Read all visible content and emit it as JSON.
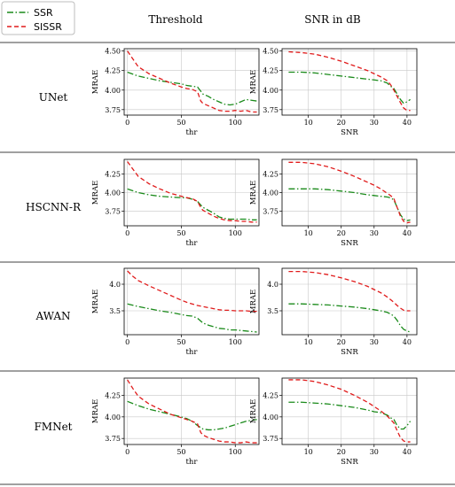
{
  "legend": {
    "items": [
      {
        "name": "SSR",
        "color": "#1a8a1a",
        "dash": "dashdot"
      },
      {
        "name": "SISSR",
        "color": "#e01b1b",
        "dash": "dash"
      }
    ]
  },
  "columns": [
    "Threshold",
    "SNR in dB"
  ],
  "rows": [
    "UNet",
    "HSCNN-R",
    "AWAN",
    "FMNet"
  ],
  "chart_data": [
    {
      "type": "line",
      "row": "UNet",
      "column": "Threshold",
      "xlabel": "thr",
      "ylabel": "MRAE",
      "xlim": [
        -3,
        122
      ],
      "ylim": [
        3.68,
        4.53
      ],
      "xticks": [
        0,
        50,
        100
      ],
      "yticks": [
        3.75,
        4.0,
        4.25,
        4.5
      ],
      "grid": true,
      "series": [
        {
          "name": "SSR",
          "x": [
            0,
            10,
            20,
            30,
            40,
            50,
            55,
            60,
            65,
            70,
            75,
            80,
            85,
            90,
            95,
            100,
            105,
            110,
            115,
            120
          ],
          "values": [
            4.23,
            4.18,
            4.15,
            4.12,
            4.1,
            4.08,
            4.06,
            4.05,
            4.04,
            3.95,
            3.92,
            3.88,
            3.85,
            3.82,
            3.81,
            3.82,
            3.85,
            3.88,
            3.87,
            3.86
          ]
        },
        {
          "name": "SISSR",
          "x": [
            0,
            5,
            10,
            20,
            30,
            40,
            50,
            55,
            60,
            65,
            68,
            70,
            75,
            80,
            85,
            90,
            95,
            100,
            105,
            110,
            115,
            120
          ],
          "values": [
            4.5,
            4.4,
            4.3,
            4.21,
            4.15,
            4.09,
            4.04,
            4.02,
            4.01,
            3.98,
            3.86,
            3.83,
            3.8,
            3.77,
            3.74,
            3.73,
            3.73,
            3.74,
            3.73,
            3.74,
            3.72,
            3.72
          ]
        }
      ]
    },
    {
      "type": "line",
      "row": "UNet",
      "column": "SNR in dB",
      "xlabel": "SNR",
      "ylabel": "MRAE",
      "xlim": [
        2,
        43
      ],
      "ylim": [
        3.68,
        4.53
      ],
      "xticks": [
        10,
        20,
        30,
        40
      ],
      "yticks": [
        3.75,
        4.0,
        4.25,
        4.5
      ],
      "grid": true,
      "series": [
        {
          "name": "SSR",
          "x": [
            4,
            8,
            12,
            16,
            20,
            24,
            28,
            30,
            32,
            34,
            35,
            36,
            37,
            38,
            39,
            40,
            41
          ],
          "values": [
            4.23,
            4.23,
            4.22,
            4.2,
            4.18,
            4.16,
            4.14,
            4.13,
            4.12,
            4.09,
            4.05,
            4.02,
            3.95,
            3.88,
            3.83,
            3.85,
            3.88
          ]
        },
        {
          "name": "SISSR",
          "x": [
            4,
            8,
            12,
            16,
            20,
            24,
            28,
            30,
            32,
            34,
            35,
            36,
            37,
            38,
            39,
            40,
            41
          ],
          "values": [
            4.49,
            4.48,
            4.46,
            4.42,
            4.37,
            4.31,
            4.25,
            4.21,
            4.17,
            4.12,
            4.07,
            4.0,
            3.92,
            3.84,
            3.77,
            3.74,
            3.74
          ]
        }
      ]
    },
    {
      "type": "line",
      "row": "HSCNN-R",
      "column": "Threshold",
      "xlabel": "thr",
      "ylabel": "MRAE",
      "xlim": [
        -3,
        122
      ],
      "ylim": [
        3.55,
        4.45
      ],
      "xticks": [
        0,
        50,
        100
      ],
      "yticks": [
        3.75,
        4.0,
        4.25
      ],
      "grid": true,
      "series": [
        {
          "name": "SSR",
          "x": [
            0,
            10,
            20,
            30,
            40,
            50,
            55,
            60,
            65,
            70,
            75,
            80,
            85,
            90,
            95,
            100,
            105,
            110,
            115,
            120
          ],
          "values": [
            4.05,
            4.0,
            3.97,
            3.95,
            3.94,
            3.93,
            3.93,
            3.91,
            3.88,
            3.8,
            3.76,
            3.72,
            3.67,
            3.65,
            3.64,
            3.64,
            3.64,
            3.64,
            3.63,
            3.63
          ]
        },
        {
          "name": "SISSR",
          "x": [
            0,
            5,
            10,
            20,
            30,
            40,
            50,
            55,
            60,
            65,
            68,
            70,
            75,
            80,
            85,
            90,
            95,
            100,
            105,
            110,
            115,
            120
          ],
          "values": [
            4.42,
            4.32,
            4.22,
            4.12,
            4.05,
            3.99,
            3.95,
            3.93,
            3.92,
            3.88,
            3.8,
            3.76,
            3.72,
            3.68,
            3.65,
            3.63,
            3.62,
            3.62,
            3.61,
            3.61,
            3.6,
            3.6
          ]
        }
      ]
    },
    {
      "type": "line",
      "row": "HSCNN-R",
      "column": "SNR in dB",
      "xlabel": "SNR",
      "ylabel": "MRAE",
      "xlim": [
        2,
        43
      ],
      "ylim": [
        3.55,
        4.45
      ],
      "xticks": [
        10,
        20,
        30,
        40
      ],
      "yticks": [
        3.75,
        4.0,
        4.25
      ],
      "grid": true,
      "series": [
        {
          "name": "SSR",
          "x": [
            4,
            8,
            12,
            16,
            20,
            24,
            28,
            30,
            32,
            34,
            35,
            36,
            37,
            38,
            39,
            40,
            41
          ],
          "values": [
            4.05,
            4.05,
            4.05,
            4.04,
            4.02,
            4.0,
            3.97,
            3.96,
            3.95,
            3.94,
            3.93,
            3.9,
            3.8,
            3.7,
            3.64,
            3.62,
            3.63
          ]
        },
        {
          "name": "SISSR",
          "x": [
            4,
            8,
            12,
            16,
            20,
            24,
            28,
            30,
            32,
            34,
            35,
            36,
            37,
            38,
            39,
            40,
            41
          ],
          "values": [
            4.41,
            4.41,
            4.39,
            4.35,
            4.29,
            4.22,
            4.14,
            4.1,
            4.05,
            3.99,
            3.96,
            3.92,
            3.8,
            3.68,
            3.61,
            3.59,
            3.6
          ]
        }
      ]
    },
    {
      "type": "line",
      "row": "AWAN",
      "column": "Threshold",
      "xlabel": "thr",
      "ylabel": "MRAE",
      "xlim": [
        -3,
        122
      ],
      "ylim": [
        3.05,
        4.3
      ],
      "xticks": [
        0,
        50,
        100
      ],
      "yticks": [
        3.5,
        4.0
      ],
      "grid": true,
      "series": [
        {
          "name": "SSR",
          "x": [
            0,
            10,
            20,
            30,
            40,
            50,
            55,
            60,
            65,
            70,
            75,
            80,
            85,
            90,
            95,
            100,
            105,
            110,
            115,
            120
          ],
          "values": [
            3.63,
            3.58,
            3.54,
            3.5,
            3.47,
            3.43,
            3.41,
            3.4,
            3.36,
            3.27,
            3.23,
            3.2,
            3.17,
            3.16,
            3.14,
            3.14,
            3.13,
            3.12,
            3.11,
            3.1
          ]
        },
        {
          "name": "SISSR",
          "x": [
            0,
            5,
            10,
            20,
            30,
            40,
            50,
            55,
            60,
            65,
            70,
            75,
            80,
            85,
            90,
            95,
            100,
            105,
            110,
            115,
            120
          ],
          "values": [
            4.25,
            4.15,
            4.07,
            3.97,
            3.88,
            3.79,
            3.7,
            3.66,
            3.63,
            3.6,
            3.58,
            3.56,
            3.54,
            3.52,
            3.51,
            3.51,
            3.5,
            3.5,
            3.5,
            3.49,
            3.49
          ]
        }
      ]
    },
    {
      "type": "line",
      "row": "AWAN",
      "column": "SNR in dB",
      "xlabel": "SNR",
      "ylabel": "MRAE",
      "xlim": [
        2,
        43
      ],
      "ylim": [
        3.05,
        4.3
      ],
      "xticks": [
        10,
        20,
        30,
        40
      ],
      "yticks": [
        3.5,
        4.0
      ],
      "grid": true,
      "series": [
        {
          "name": "SSR",
          "x": [
            4,
            8,
            12,
            16,
            20,
            24,
            28,
            30,
            32,
            34,
            35,
            36,
            37,
            38,
            39,
            40,
            41
          ],
          "values": [
            3.63,
            3.63,
            3.62,
            3.61,
            3.59,
            3.57,
            3.54,
            3.52,
            3.5,
            3.47,
            3.44,
            3.4,
            3.32,
            3.22,
            3.15,
            3.12,
            3.1
          ]
        },
        {
          "name": "SISSR",
          "x": [
            4,
            8,
            12,
            16,
            20,
            24,
            28,
            30,
            32,
            34,
            35,
            36,
            37,
            38,
            39,
            40,
            41
          ],
          "values": [
            4.24,
            4.24,
            4.22,
            4.18,
            4.12,
            4.05,
            3.96,
            3.9,
            3.84,
            3.76,
            3.71,
            3.66,
            3.6,
            3.55,
            3.51,
            3.5,
            3.5
          ]
        }
      ]
    },
    {
      "type": "line",
      "row": "FMNet",
      "column": "Threshold",
      "xlabel": "thr",
      "ylabel": "MRAE",
      "xlim": [
        -3,
        122
      ],
      "ylim": [
        3.68,
        4.45
      ],
      "xticks": [
        0,
        50,
        100
      ],
      "yticks": [
        3.75,
        4.0,
        4.25
      ],
      "grid": true,
      "series": [
        {
          "name": "SSR",
          "x": [
            0,
            10,
            20,
            30,
            40,
            50,
            55,
            60,
            65,
            70,
            75,
            80,
            85,
            90,
            95,
            100,
            105,
            110,
            115,
            120
          ],
          "values": [
            4.18,
            4.13,
            4.09,
            4.06,
            4.03,
            4.0,
            3.98,
            3.95,
            3.9,
            3.86,
            3.85,
            3.85,
            3.86,
            3.87,
            3.89,
            3.91,
            3.93,
            3.95,
            3.96,
            3.97
          ]
        },
        {
          "name": "SISSR",
          "x": [
            0,
            5,
            10,
            20,
            30,
            40,
            50,
            55,
            60,
            65,
            68,
            70,
            75,
            80,
            85,
            90,
            95,
            100,
            105,
            110,
            115,
            120
          ],
          "values": [
            4.43,
            4.33,
            4.24,
            4.15,
            4.09,
            4.03,
            3.99,
            3.97,
            3.95,
            3.92,
            3.82,
            3.79,
            3.76,
            3.74,
            3.72,
            3.71,
            3.71,
            3.7,
            3.7,
            3.71,
            3.7,
            3.7
          ]
        }
      ]
    },
    {
      "type": "line",
      "row": "FMNet",
      "column": "SNR in dB",
      "xlabel": "SNR",
      "ylabel": "MRAE",
      "xlim": [
        2,
        43
      ],
      "ylim": [
        3.68,
        4.45
      ],
      "xticks": [
        10,
        20,
        30,
        40
      ],
      "yticks": [
        3.75,
        4.0,
        4.25
      ],
      "grid": true,
      "series": [
        {
          "name": "SSR",
          "x": [
            4,
            8,
            12,
            16,
            20,
            24,
            28,
            30,
            32,
            34,
            35,
            36,
            37,
            38,
            39,
            40,
            41
          ],
          "values": [
            4.17,
            4.17,
            4.16,
            4.15,
            4.13,
            4.11,
            4.08,
            4.06,
            4.05,
            4.02,
            3.99,
            3.97,
            3.9,
            3.86,
            3.86,
            3.9,
            3.95
          ]
        },
        {
          "name": "SISSR",
          "x": [
            4,
            8,
            12,
            16,
            20,
            24,
            28,
            30,
            32,
            34,
            35,
            36,
            37,
            38,
            39,
            40,
            41
          ],
          "values": [
            4.43,
            4.43,
            4.41,
            4.37,
            4.32,
            4.25,
            4.17,
            4.12,
            4.07,
            4.01,
            3.97,
            3.93,
            3.84,
            3.76,
            3.72,
            3.71,
            3.71
          ]
        }
      ]
    }
  ]
}
